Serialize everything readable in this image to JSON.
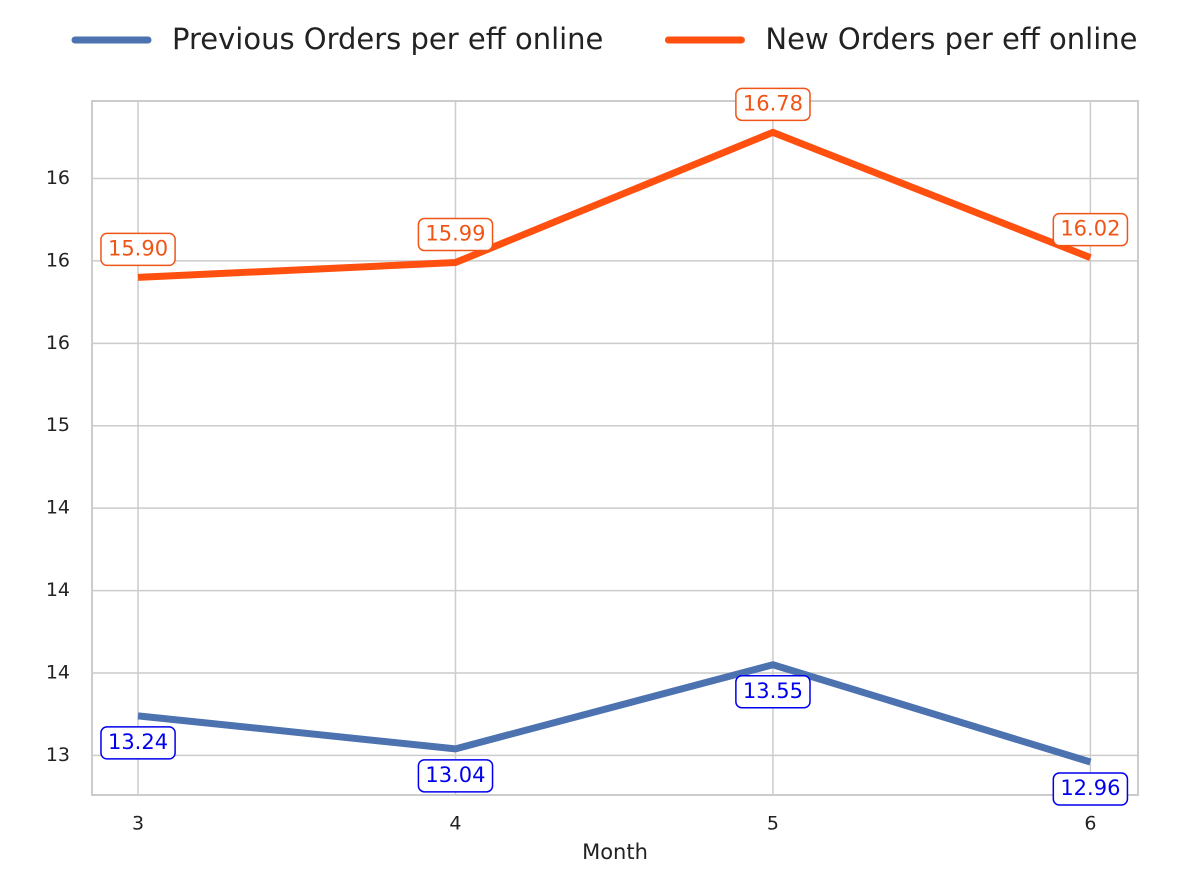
{
  "chart_data": {
    "type": "line",
    "x_label": "Month",
    "x": [
      3,
      4,
      5,
      6
    ],
    "xlim": [
      2.855,
      6.15
    ],
    "xticks": [
      3,
      4,
      5,
      6
    ],
    "ylim": [
      12.76,
      16.97
    ],
    "yticks": [
      {
        "value": 13.0,
        "label": "13"
      },
      {
        "value": 13.5,
        "label": "14"
      },
      {
        "value": 14.0,
        "label": "14"
      },
      {
        "value": 14.5,
        "label": "14"
      },
      {
        "value": 15.0,
        "label": "15"
      },
      {
        "value": 15.5,
        "label": "16"
      },
      {
        "value": 16.0,
        "label": "16"
      },
      {
        "value": 16.5,
        "label": "16"
      }
    ],
    "grid": true,
    "legend": "top",
    "series": [
      {
        "name": "Previous Orders per eff online",
        "color": "#4c72b0",
        "label_color": "#0000ee",
        "label_side": "below",
        "values": [
          13.24,
          13.04,
          13.55,
          12.96
        ]
      },
      {
        "name": "New Orders per eff online",
        "color": "#ff5010",
        "label_color": "#f05518",
        "label_side": "above",
        "values": [
          15.9,
          15.99,
          16.78,
          16.02
        ],
        "value_labels": [
          "15.90",
          "15.99",
          "16.78",
          "16.02"
        ]
      }
    ]
  }
}
